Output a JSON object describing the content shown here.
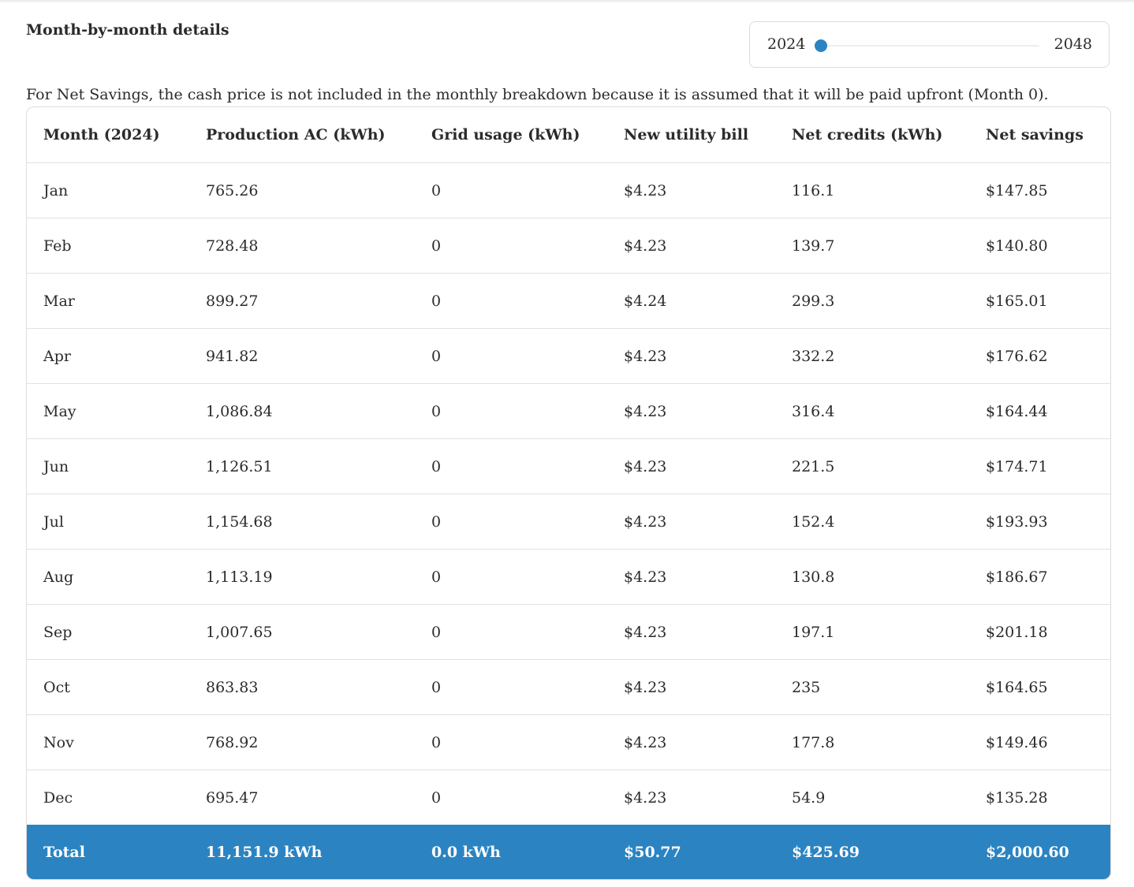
{
  "header": {
    "title": "Month-by-month details"
  },
  "year_slider": {
    "start_label": "2024",
    "end_label": "2048",
    "min": 2024,
    "max": 2048,
    "value": 2024
  },
  "note": "For Net Savings, the cash price is not included in the monthly breakdown because it is assumed that it will be paid upfront (Month 0).",
  "table": {
    "columns": [
      "Month (2024)",
      "Production AC (kWh)",
      "Grid usage (kWh)",
      "New utility bill",
      "Net credits (kWh)",
      "Net savings"
    ],
    "rows": [
      [
        "Jan",
        "765.26",
        "0",
        "$4.23",
        "116.1",
        "$147.85"
      ],
      [
        "Feb",
        "728.48",
        "0",
        "$4.23",
        "139.7",
        "$140.80"
      ],
      [
        "Mar",
        "899.27",
        "0",
        "$4.24",
        "299.3",
        "$165.01"
      ],
      [
        "Apr",
        "941.82",
        "0",
        "$4.23",
        "332.2",
        "$176.62"
      ],
      [
        "May",
        "1,086.84",
        "0",
        "$4.23",
        "316.4",
        "$164.44"
      ],
      [
        "Jun",
        "1,126.51",
        "0",
        "$4.23",
        "221.5",
        "$174.71"
      ],
      [
        "Jul",
        "1,154.68",
        "0",
        "$4.23",
        "152.4",
        "$193.93"
      ],
      [
        "Aug",
        "1,113.19",
        "0",
        "$4.23",
        "130.8",
        "$186.67"
      ],
      [
        "Sep",
        "1,007.65",
        "0",
        "$4.23",
        "197.1",
        "$201.18"
      ],
      [
        "Oct",
        "863.83",
        "0",
        "$4.23",
        "235",
        "$164.65"
      ],
      [
        "Nov",
        "768.92",
        "0",
        "$4.23",
        "177.8",
        "$149.46"
      ],
      [
        "Dec",
        "695.47",
        "0",
        "$4.23",
        "54.9",
        "$135.28"
      ]
    ],
    "total": [
      "Total",
      "11,151.9 kWh",
      "0.0 kWh",
      "$50.77",
      "$425.69",
      "$2,000.60"
    ]
  },
  "colors": {
    "accent": "#2b84c1",
    "text": "#2b2b2b",
    "border": "#dcdcdc"
  }
}
